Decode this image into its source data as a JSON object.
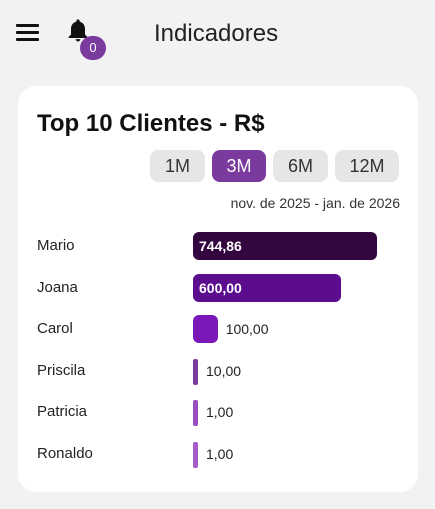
{
  "header": {
    "title": "Indicadores",
    "notification_count": "0",
    "icons": [
      "menu-icon",
      "bell-icon"
    ]
  },
  "card": {
    "title": "Top 10 Clientes - R$",
    "periods": [
      "1M",
      "3M",
      "6M",
      "12M"
    ],
    "active_period": "3M",
    "date_range": "nov. de 2025 - jan. de 2026"
  },
  "chart_data": {
    "type": "bar",
    "orientation": "horizontal",
    "categories": [
      "Mario",
      "Joana",
      "Carol",
      "Priscila",
      "Patricia",
      "Ronaldo"
    ],
    "values": [
      744.86,
      600.0,
      100.0,
      10.0,
      1.0,
      1.0
    ],
    "labels": [
      "744,86",
      "600,00",
      "100,00",
      "10,00",
      "1,00",
      "1,00"
    ],
    "colors": [
      "#33063f",
      "#5c0d8f",
      "#7b18b7",
      "#7b3a9e",
      "#9b4dbf",
      "#a65cc8"
    ]
  },
  "colors": {
    "accent": "#7b3a9e",
    "background": "#f2f2f2",
    "card": "#ffffff"
  }
}
